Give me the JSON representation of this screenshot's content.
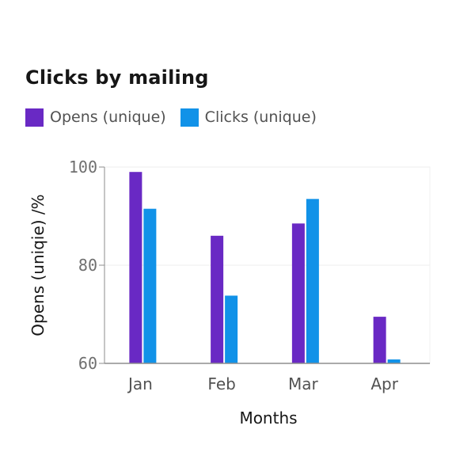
{
  "chart_data": {
    "type": "bar",
    "title": "Clicks by mailing",
    "xlabel": "Months",
    "ylabel": "Opens (uniqie) /%",
    "categories": [
      "Jan",
      "Feb",
      "Mar",
      "Apr"
    ],
    "series": [
      {
        "name": "Opens (unique)",
        "color": "#6929c4",
        "values": [
          99,
          86,
          88.5,
          69.5
        ]
      },
      {
        "name": "Clicks (unique)",
        "color": "#1192e8",
        "values": [
          91.5,
          73.8,
          93.5,
          60.8
        ]
      }
    ],
    "ylim": [
      60,
      100
    ],
    "yticks": [
      "60",
      "80",
      "100"
    ],
    "grid": true,
    "legend_position": "top-left"
  }
}
